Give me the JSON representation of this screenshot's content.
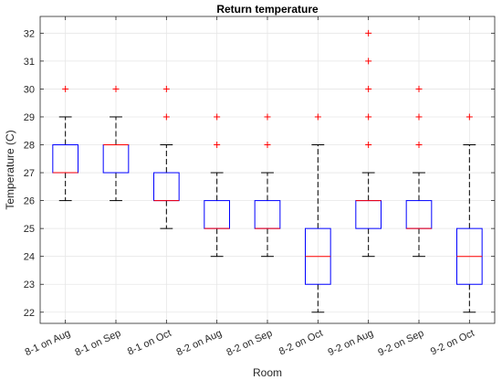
{
  "chart_data": {
    "type": "box",
    "title": "Return temperature",
    "xlabel": "Room",
    "ylabel": "Temperature (C)",
    "ylim": [
      21.6,
      32.6
    ],
    "yticks": [
      22,
      23,
      24,
      25,
      26,
      27,
      28,
      29,
      30,
      31,
      32
    ],
    "grid": true,
    "categories": [
      "8-1 on Aug",
      "8-1 on Sep",
      "8-1 on Oct",
      "8-2 on Aug",
      "8-2 on Sep",
      "8-2 on Oct",
      "9-2 on Aug",
      "9-2 on Sep",
      "9-2 on Oct"
    ],
    "boxes": [
      {
        "whisker_low": 26,
        "q1": 27,
        "median": 27,
        "q3": 28,
        "whisker_high": 29,
        "outliers": [
          30
        ]
      },
      {
        "whisker_low": 26,
        "q1": 27,
        "median": 28,
        "q3": 28,
        "whisker_high": 29,
        "outliers": [
          30
        ]
      },
      {
        "whisker_low": 25,
        "q1": 26,
        "median": 26,
        "q3": 27,
        "whisker_high": 28,
        "outliers": [
          29,
          30
        ]
      },
      {
        "whisker_low": 24,
        "q1": 25,
        "median": 25,
        "q3": 26,
        "whisker_high": 27,
        "outliers": [
          28,
          29
        ]
      },
      {
        "whisker_low": 24,
        "q1": 25,
        "median": 25,
        "q3": 26,
        "whisker_high": 27,
        "outliers": [
          28,
          29
        ]
      },
      {
        "whisker_low": 22,
        "q1": 23,
        "median": 24,
        "q3": 25,
        "whisker_high": 28,
        "outliers": [
          29
        ]
      },
      {
        "whisker_low": 24,
        "q1": 25,
        "median": 26,
        "q3": 26,
        "whisker_high": 27,
        "outliers": [
          28,
          29,
          30,
          31,
          32
        ]
      },
      {
        "whisker_low": 24,
        "q1": 25,
        "median": 25,
        "q3": 26,
        "whisker_high": 27,
        "outliers": [
          28,
          29,
          30
        ]
      },
      {
        "whisker_low": 22,
        "q1": 23,
        "median": 24,
        "q3": 25,
        "whisker_high": 28,
        "outliers": [
          29
        ]
      }
    ],
    "colors": {
      "box": "#0000ff",
      "median": "#ff0000",
      "outlier": "#ff0000",
      "whisker": "#000000",
      "grid": "#e6e6e6",
      "axis": "#262626"
    }
  }
}
